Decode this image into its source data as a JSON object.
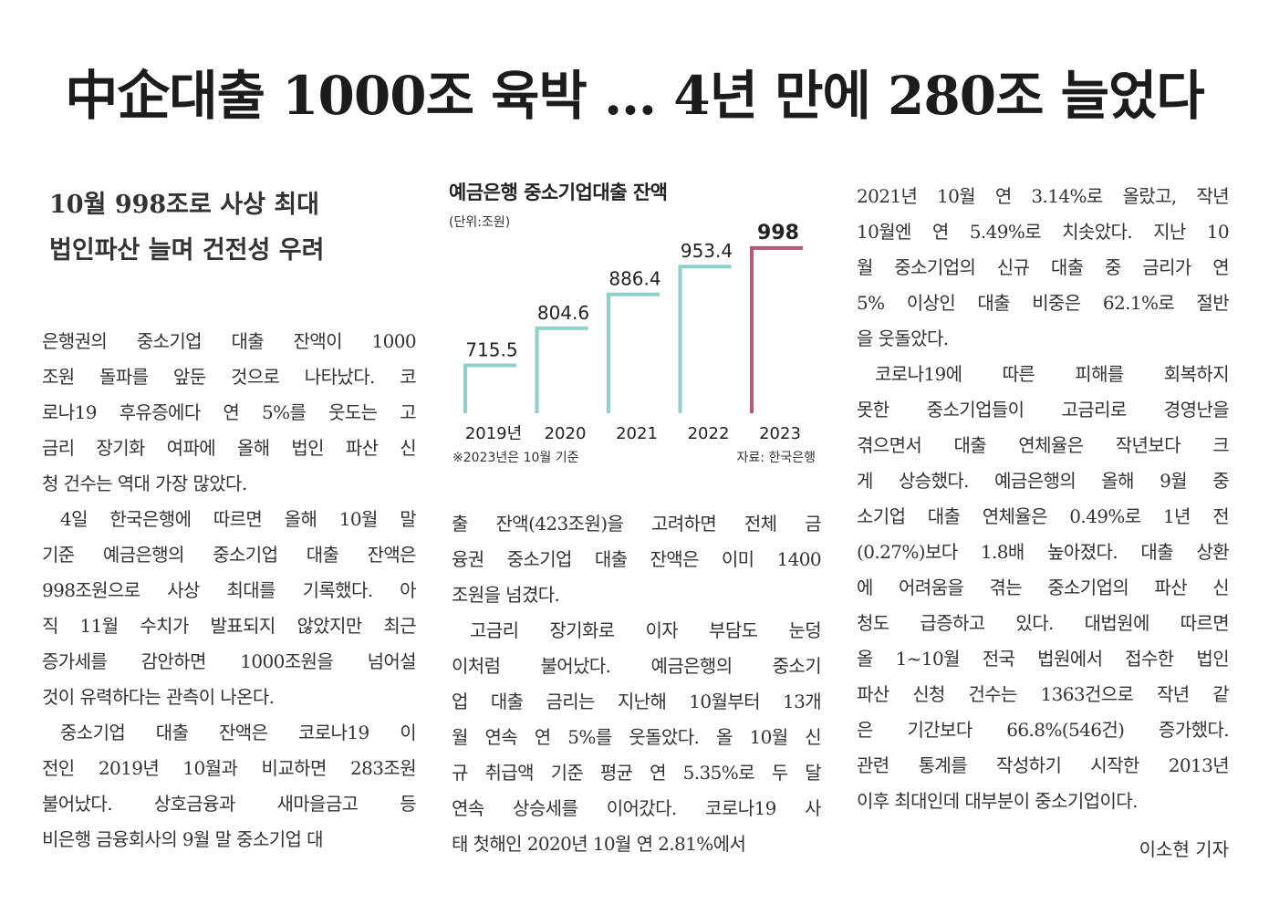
{
  "headline": "中企대출 1000조 육박 … 4년 만에 280조 늘었다",
  "subhead": [
    "10월 998조로 사상 최대",
    "법인파산 늘며 건전성 우려"
  ],
  "chart_data": {
    "type": "bar",
    "title": "예금은행 중소기업대출 잔액",
    "unit": "(단위:조원)",
    "categories": [
      "2019년",
      "2020",
      "2021",
      "2022",
      "2023"
    ],
    "values": [
      715.5,
      804.6,
      886.4,
      953.4,
      998
    ],
    "value_labels": [
      "715.5",
      "804.6",
      "886.4",
      "953.4",
      "998"
    ],
    "colors": [
      "#8fcfcc",
      "#8fcfcc",
      "#8fcfcc",
      "#8fcfcc",
      "#b6587a"
    ],
    "highlight_index": 4,
    "ylim": [
      600,
      1000
    ],
    "note": "※2023년은 10월 기준",
    "source": "자료: 한국은행"
  },
  "col1": [
    {
      "t": "은행권의 중소기업 대출 잔액이 1000",
      "c": ""
    },
    {
      "t": "조원 돌파를 앞둔 것으로 나타났다. 코",
      "c": ""
    },
    {
      "t": "로나19 후유증에다 연 5%를 웃도는 고",
      "c": ""
    },
    {
      "t": "금리 장기화 여파에 올해 법인 파산 신",
      "c": ""
    },
    {
      "t": "청 건수는 역대 가장 많았다.",
      "c": "last"
    },
    {
      "t": "4일 한국은행에 따르면 올해 10월 말",
      "c": "indent"
    },
    {
      "t": "기준 예금은행의 중소기업 대출 잔액은",
      "c": ""
    },
    {
      "t": "998조원으로 사상 최대를 기록했다. 아",
      "c": ""
    },
    {
      "t": "직 11월 수치가 발표되지 않았지만 최근",
      "c": ""
    },
    {
      "t": "증가세를 감안하면 1000조원을 넘어설",
      "c": ""
    },
    {
      "t": "것이 유력하다는 관측이 나온다.",
      "c": "last"
    },
    {
      "t": "중소기업 대출 잔액은 코로나19 이",
      "c": "indent"
    },
    {
      "t": "전인 2019년 10월과 비교하면 283조원",
      "c": ""
    },
    {
      "t": "불어났다. 상호금융과 새마을금고 등",
      "c": ""
    },
    {
      "t": "비은행 금융회사의 9월 말 중소기업 대",
      "c": ""
    }
  ],
  "col2": [
    {
      "t": "출 잔액(423조원)을 고려하면 전체 금",
      "c": ""
    },
    {
      "t": "융권 중소기업 대출 잔액은 이미 1400",
      "c": ""
    },
    {
      "t": "조원을 넘겼다.",
      "c": "last"
    },
    {
      "t": "고금리 장기화로 이자 부담도 눈덩",
      "c": "indent"
    },
    {
      "t": "이처럼 불어났다. 예금은행의 중소기",
      "c": ""
    },
    {
      "t": "업 대출 금리는 지난해 10월부터 13개",
      "c": ""
    },
    {
      "t": "월 연속 연 5%를 웃돌았다. 올 10월 신",
      "c": ""
    },
    {
      "t": "규 취급액 기준 평균 연 5.35%로 두 달",
      "c": ""
    },
    {
      "t": "연속 상승세를 이어갔다. 코로나19 사",
      "c": ""
    },
    {
      "t": "태 첫해인 2020년 10월 연 2.81%에서",
      "c": ""
    }
  ],
  "col3": [
    {
      "t": "2021년 10월 연 3.14%로 올랐고, 작년",
      "c": ""
    },
    {
      "t": "10월엔 연 5.49%로 치솟았다. 지난 10",
      "c": ""
    },
    {
      "t": "월 중소기업의 신규 대출 중 금리가 연",
      "c": ""
    },
    {
      "t": "5% 이상인 대출 비중은 62.1%로 절반",
      "c": ""
    },
    {
      "t": "을 웃돌았다.",
      "c": "last"
    },
    {
      "t": "코로나19에 따른 피해를 회복하지",
      "c": "indent"
    },
    {
      "t": "못한 중소기업들이 고금리로 경영난을",
      "c": ""
    },
    {
      "t": "겪으면서 대출 연체율은 작년보다 크",
      "c": ""
    },
    {
      "t": "게 상승했다. 예금은행의 올해 9월 중",
      "c": ""
    },
    {
      "t": "소기업 대출 연체율은 0.49%로 1년 전",
      "c": ""
    },
    {
      "t": "(0.27%)보다 1.8배 높아졌다. 대출 상환",
      "c": ""
    },
    {
      "t": "에 어려움을 겪는 중소기업의 파산 신",
      "c": ""
    },
    {
      "t": "청도 급증하고 있다. 대법원에 따르면",
      "c": ""
    },
    {
      "t": "올 1~10월 전국 법원에서 접수한 법인",
      "c": ""
    },
    {
      "t": "파산 신청 건수는 1363건으로 작년 같",
      "c": ""
    },
    {
      "t": "은 기간보다 66.8%(546건) 증가했다.",
      "c": ""
    },
    {
      "t": "관련 통계를 작성하기 시작한 2013년",
      "c": ""
    },
    {
      "t": "이후 최대인데 대부분이 중소기업이다.",
      "c": ""
    }
  ],
  "byline": "이소현 기자"
}
